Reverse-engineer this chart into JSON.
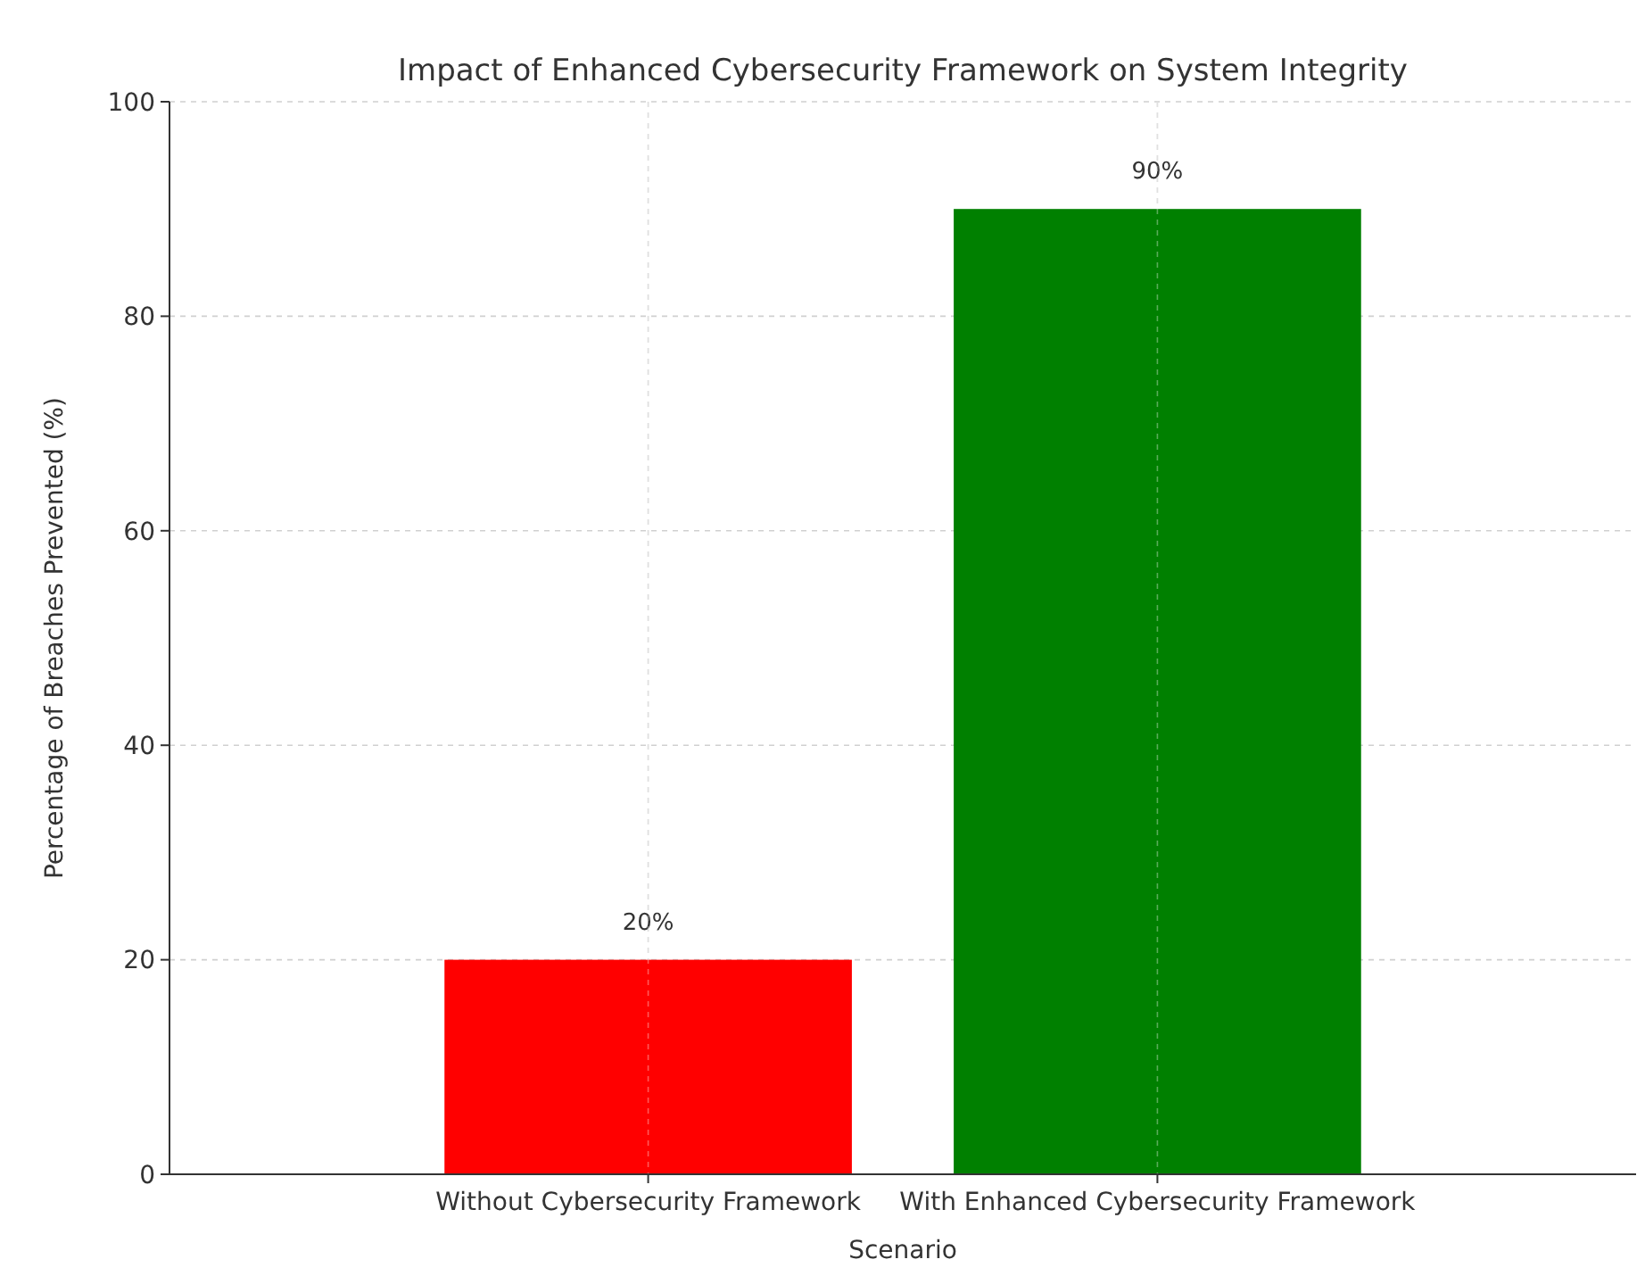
{
  "chart_data": {
    "type": "bar",
    "title": "Impact of Enhanced Cybersecurity Framework on System Integrity",
    "xlabel": "Scenario",
    "ylabel": "Percentage of Breaches Prevented (%)",
    "categories": [
      "Without Cybersecurity Framework",
      "With Enhanced Cybersecurity Framework"
    ],
    "values": [
      20,
      90
    ],
    "colors": [
      "#ff0000",
      "#008000"
    ],
    "value_labels": [
      "20%",
      "90%"
    ],
    "ylim": [
      0,
      100
    ],
    "yticks": [
      0,
      20,
      40,
      60,
      80,
      100
    ],
    "grid": true
  }
}
